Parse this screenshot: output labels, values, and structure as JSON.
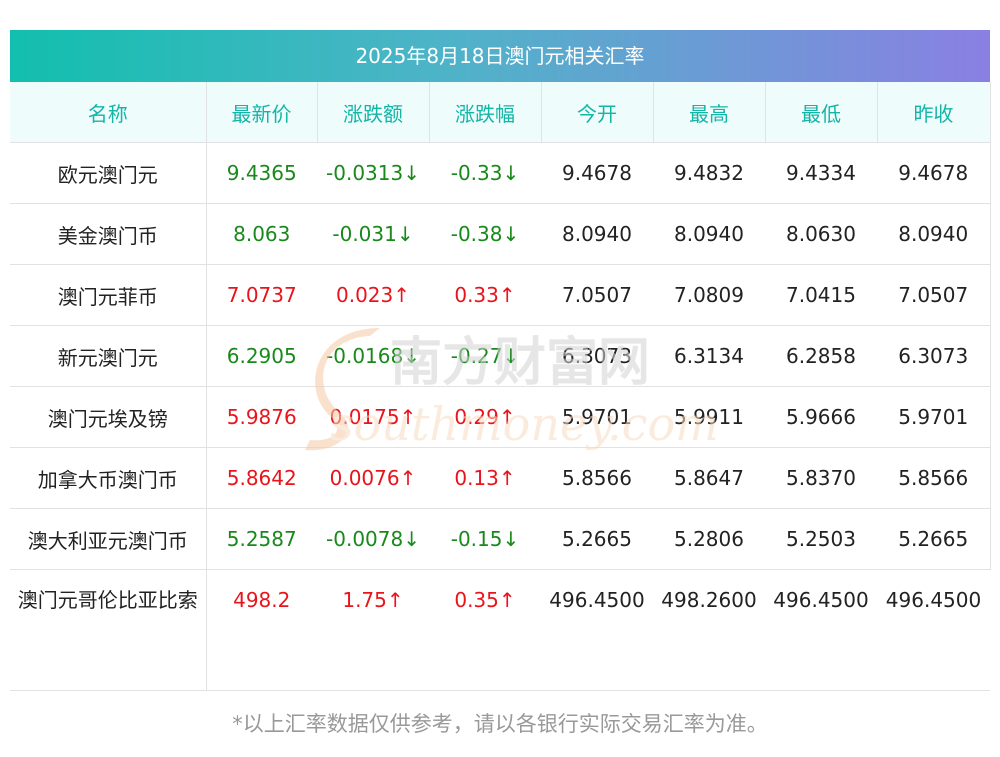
{
  "title": "2025年8月18日澳门元相关汇率",
  "colors": {
    "title_gradient_start": "#12bfae",
    "title_gradient_end": "#8a80e2",
    "header_text": "#14b5a7",
    "header_bg": "#eefdfc",
    "up": "#e8141c",
    "down": "#19891b"
  },
  "table": {
    "headers": [
      "名称",
      "最新价",
      "涨跌额",
      "涨跌幅",
      "今开",
      "最高",
      "最低",
      "昨收"
    ],
    "rows": [
      {
        "name": "欧元澳门元",
        "latest": "9.4365",
        "change": "-0.0313↓",
        "pct": "-0.33↓",
        "open": "9.4678",
        "high": "9.4832",
        "low": "9.4334",
        "prev": "9.4678",
        "direction": "down"
      },
      {
        "name": "美金澳门币",
        "latest": "8.063",
        "change": "-0.031↓",
        "pct": "-0.38↓",
        "open": "8.0940",
        "high": "8.0940",
        "low": "8.0630",
        "prev": "8.0940",
        "direction": "down"
      },
      {
        "name": "澳门元菲币",
        "latest": "7.0737",
        "change": "0.023↑",
        "pct": "0.33↑",
        "open": "7.0507",
        "high": "7.0809",
        "low": "7.0415",
        "prev": "7.0507",
        "direction": "up"
      },
      {
        "name": "新元澳门元",
        "latest": "6.2905",
        "change": "-0.0168↓",
        "pct": "-0.27↓",
        "open": "6.3073",
        "high": "6.3134",
        "low": "6.2858",
        "prev": "6.3073",
        "direction": "down"
      },
      {
        "name": "澳门元埃及镑",
        "latest": "5.9876",
        "change": "0.0175↑",
        "pct": "0.29↑",
        "open": "5.9701",
        "high": "5.9911",
        "low": "5.9666",
        "prev": "5.9701",
        "direction": "up"
      },
      {
        "name": "加拿大币澳门币",
        "latest": "5.8642",
        "change": "0.0076↑",
        "pct": "0.13↑",
        "open": "5.8566",
        "high": "5.8647",
        "low": "5.8370",
        "prev": "5.8566",
        "direction": "up"
      },
      {
        "name": "澳大利亚元澳门币",
        "latest": "5.2587",
        "change": "-0.0078↓",
        "pct": "-0.15↓",
        "open": "5.2665",
        "high": "5.2806",
        "low": "5.2503",
        "prev": "5.2665",
        "direction": "down"
      },
      {
        "name": "澳门元哥伦比亚比索",
        "latest": "498.2",
        "change": "1.75↑",
        "pct": "0.35↑",
        "open": "496.4500",
        "high": "498.2600",
        "low": "496.4500",
        "prev": "496.4500",
        "direction": "up"
      }
    ]
  },
  "watermark": {
    "cn": "南方财富网",
    "en": "southmoney.com"
  },
  "footer_note": "*以上汇率数据仅供参考，请以各银行实际交易汇率为准。"
}
